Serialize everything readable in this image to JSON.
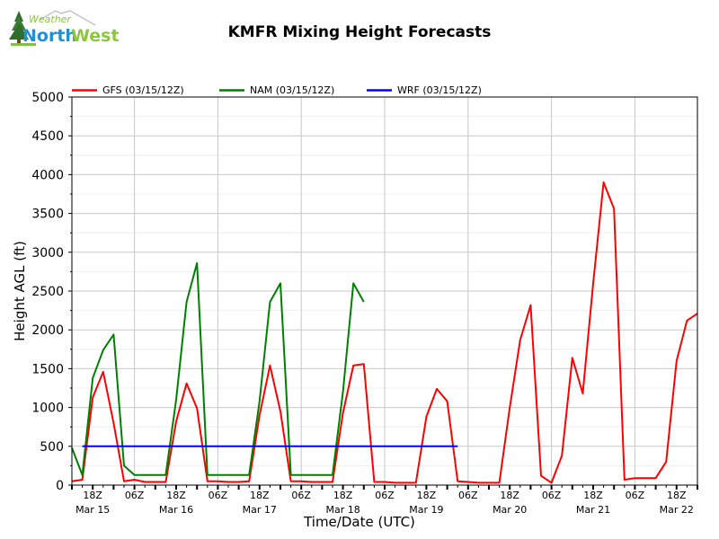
{
  "logo": {
    "text_top": "Weather",
    "text_north": "North",
    "text_west": "West"
  },
  "chart_data": {
    "type": "line",
    "title": "KMFR Mixing Height Forecasts",
    "xlabel": "Time/Date (UTC)",
    "ylabel": "Height AGL (ft)",
    "ylim": [
      0,
      5000
    ],
    "xlim_hours": [
      0,
      180
    ],
    "x_unit": "hours since 2019-03-15 12Z",
    "yticks": [
      0,
      500,
      1000,
      1500,
      2000,
      2500,
      3000,
      3500,
      4000,
      4500,
      5000
    ],
    "xtick_labels": [
      {
        "h": 6,
        "label": "18Z"
      },
      {
        "h": 18,
        "label": "06Z"
      },
      {
        "h": 30,
        "label": "18Z"
      },
      {
        "h": 42,
        "label": "06Z"
      },
      {
        "h": 54,
        "label": "18Z"
      },
      {
        "h": 66,
        "label": "06Z"
      },
      {
        "h": 78,
        "label": "18Z"
      },
      {
        "h": 90,
        "label": "06Z"
      },
      {
        "h": 102,
        "label": "18Z"
      },
      {
        "h": 114,
        "label": "06Z"
      },
      {
        "h": 126,
        "label": "18Z"
      },
      {
        "h": 138,
        "label": "06Z"
      },
      {
        "h": 150,
        "label": "18Z"
      },
      {
        "h": 162,
        "label": "06Z"
      },
      {
        "h": 174,
        "label": "18Z"
      }
    ],
    "date_labels": [
      {
        "h": 6,
        "label": "Mar 15"
      },
      {
        "h": 30,
        "label": "Mar 16"
      },
      {
        "h": 54,
        "label": "Mar 17"
      },
      {
        "h": 78,
        "label": "Mar 18"
      },
      {
        "h": 102,
        "label": "Mar 19"
      },
      {
        "h": 126,
        "label": "Mar 20"
      },
      {
        "h": 150,
        "label": "Mar 21"
      },
      {
        "h": 174,
        "label": "Mar 22"
      }
    ],
    "vgrid_hours": [
      18,
      42,
      66,
      90,
      114,
      138,
      162
    ],
    "legend": "top, above plot",
    "series": [
      {
        "name": "GFS (03/15/12Z)",
        "color": "#ff0000",
        "x": [
          0,
          3,
          6,
          9,
          12,
          15,
          18,
          21,
          24,
          27,
          30,
          33,
          36,
          39,
          42,
          45,
          48,
          51,
          54,
          57,
          60,
          63,
          66,
          69,
          72,
          75,
          78,
          81,
          84,
          87,
          90,
          93,
          96,
          99,
          102,
          105,
          108,
          111,
          114,
          117,
          120,
          123,
          126,
          129,
          132,
          135,
          138,
          141,
          144,
          147,
          150,
          153,
          156,
          159,
          162,
          165,
          168,
          171,
          174,
          177,
          180
        ],
        "values": [
          50,
          70,
          1130,
          1460,
          800,
          50,
          70,
          40,
          40,
          40,
          820,
          1310,
          990,
          50,
          50,
          40,
          40,
          50,
          900,
          1540,
          950,
          50,
          50,
          40,
          40,
          40,
          930,
          1540,
          1560,
          40,
          40,
          30,
          30,
          30,
          880,
          1240,
          1080,
          50,
          40,
          30,
          30,
          30,
          1000,
          1870,
          2320,
          120,
          30,
          380,
          1640,
          1180,
          2600,
          3900,
          3560,
          70,
          90,
          90,
          90,
          300,
          1600,
          2120,
          2210
        ]
      },
      {
        "name": "NAM (03/15/12Z)",
        "color": "#008000",
        "x": [
          0,
          3,
          6,
          9,
          12,
          15,
          18,
          21,
          24,
          27,
          30,
          33,
          36,
          39,
          42,
          45,
          48,
          51,
          54,
          57,
          60,
          63,
          66,
          69,
          72,
          75,
          78,
          81,
          84
        ],
        "values": [
          480,
          130,
          1380,
          1740,
          1940,
          250,
          130,
          130,
          130,
          130,
          1100,
          2360,
          2860,
          130,
          130,
          130,
          130,
          130,
          1080,
          2360,
          2600,
          130,
          130,
          130,
          130,
          130,
          1200,
          2600,
          2360
        ]
      },
      {
        "name": "WRF (03/15/12Z)",
        "color": "#0000ff",
        "x": [
          3,
          111
        ],
        "values": [
          500,
          500
        ]
      }
    ]
  }
}
